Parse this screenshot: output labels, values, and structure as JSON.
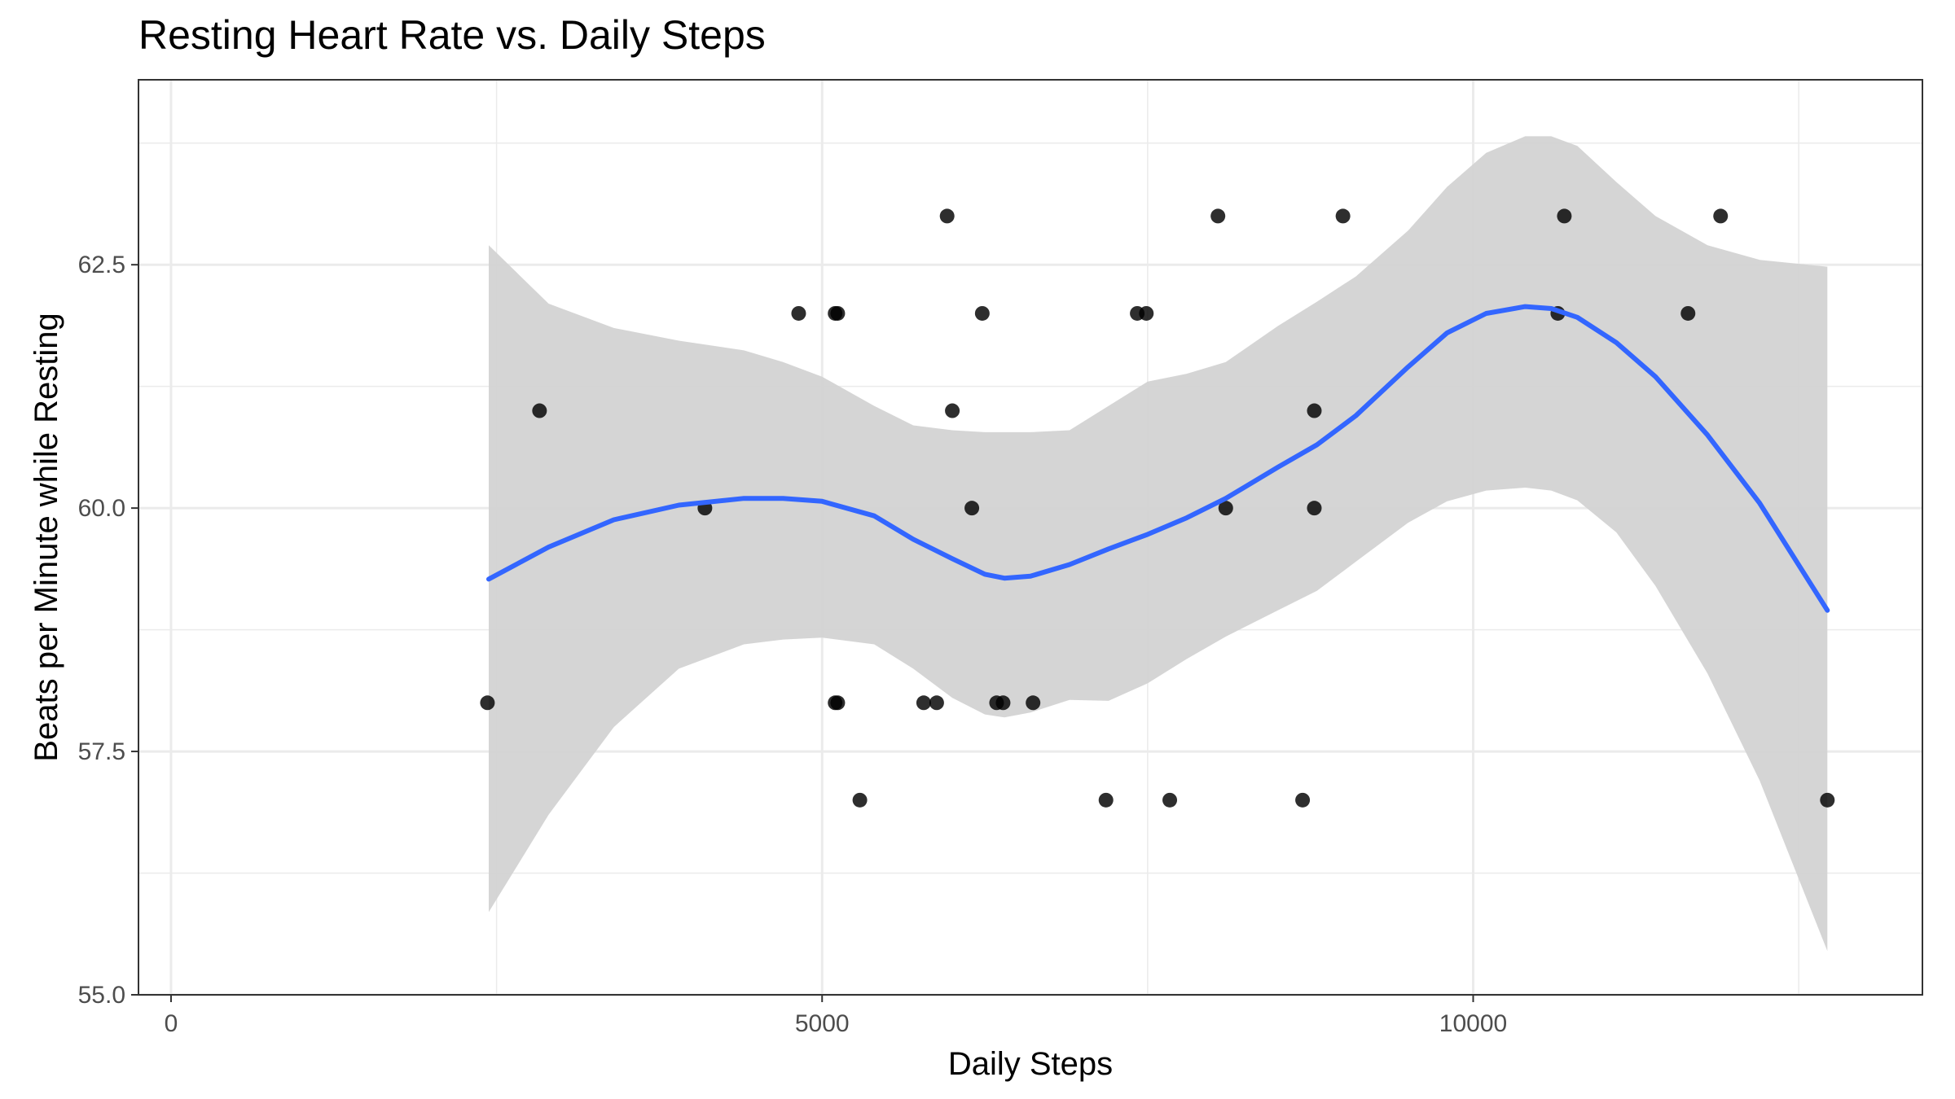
{
  "chart_data": {
    "type": "scatter",
    "title": "Resting Heart Rate vs. Daily Steps",
    "xlabel": "Daily Steps",
    "ylabel": "Beats per Minute while Resting",
    "xlim": [
      -250,
      13450
    ],
    "ylim": [
      55.0,
      64.4
    ],
    "x_ticks": [
      0,
      5000,
      10000
    ],
    "x_tick_labels": [
      "0",
      "5000",
      "10000"
    ],
    "y_ticks": [
      55.0,
      57.5,
      60.0,
      62.5
    ],
    "y_tick_labels": [
      "55.0",
      "57.5",
      "60.0",
      "62.5"
    ],
    "grid": true,
    "legend": "none",
    "colors": {
      "points": "#000000",
      "smooth": "#3366FF",
      "ribbon": "#D3D3D3",
      "grid": "#EBEBEB",
      "panel_border": "#333333"
    },
    "points": [
      {
        "x": 2430,
        "y": 58
      },
      {
        "x": 2830,
        "y": 61
      },
      {
        "x": 4100,
        "y": 60
      },
      {
        "x": 4820,
        "y": 62
      },
      {
        "x": 5100,
        "y": 62
      },
      {
        "x": 5120,
        "y": 62
      },
      {
        "x": 5100,
        "y": 58
      },
      {
        "x": 5120,
        "y": 58
      },
      {
        "x": 5290,
        "y": 57
      },
      {
        "x": 5780,
        "y": 58
      },
      {
        "x": 5880,
        "y": 58
      },
      {
        "x": 5960,
        "y": 63
      },
      {
        "x": 6000,
        "y": 61
      },
      {
        "x": 6150,
        "y": 60
      },
      {
        "x": 6230,
        "y": 62
      },
      {
        "x": 6340,
        "y": 58
      },
      {
        "x": 6390,
        "y": 58
      },
      {
        "x": 6620,
        "y": 58
      },
      {
        "x": 7180,
        "y": 57
      },
      {
        "x": 7420,
        "y": 62
      },
      {
        "x": 7490,
        "y": 62
      },
      {
        "x": 7670,
        "y": 57
      },
      {
        "x": 8040,
        "y": 63
      },
      {
        "x": 8100,
        "y": 60
      },
      {
        "x": 8690,
        "y": 57
      },
      {
        "x": 8780,
        "y": 61
      },
      {
        "x": 8780,
        "y": 60
      },
      {
        "x": 9000,
        "y": 63
      },
      {
        "x": 10650,
        "y": 62
      },
      {
        "x": 10700,
        "y": 63
      },
      {
        "x": 11650,
        "y": 62
      },
      {
        "x": 11900,
        "y": 63
      },
      {
        "x": 12720,
        "y": 57
      }
    ],
    "smooth": {
      "method": "loess",
      "x": [
        2440,
        2900,
        3400,
        3900,
        4400,
        4700,
        5000,
        5400,
        5700,
        6000,
        6250,
        6400,
        6600,
        6900,
        7200,
        7500,
        7800,
        8100,
        8500,
        8800,
        9100,
        9500,
        9800,
        10100,
        10400,
        10600,
        10800,
        11100,
        11400,
        11800,
        12200,
        12720
      ],
      "y": [
        59.27,
        59.6,
        59.88,
        60.03,
        60.1,
        60.1,
        60.07,
        59.92,
        59.68,
        59.48,
        59.32,
        59.28,
        59.3,
        59.42,
        59.58,
        59.73,
        59.9,
        60.1,
        60.42,
        60.65,
        60.95,
        61.45,
        61.8,
        62.0,
        62.07,
        62.05,
        61.96,
        61.7,
        61.35,
        60.75,
        60.05,
        58.95
      ],
      "ymin": [
        55.85,
        56.85,
        57.75,
        58.35,
        58.6,
        58.65,
        58.67,
        58.6,
        58.35,
        58.05,
        57.88,
        57.85,
        57.9,
        58.03,
        58.02,
        58.2,
        58.45,
        58.68,
        58.95,
        59.15,
        59.45,
        59.85,
        60.07,
        60.18,
        60.21,
        60.18,
        60.08,
        59.75,
        59.2,
        58.3,
        57.2,
        55.45
      ],
      "ymax": [
        62.7,
        62.1,
        61.85,
        61.72,
        61.62,
        61.5,
        61.35,
        61.05,
        60.85,
        60.8,
        60.78,
        60.78,
        60.78,
        60.8,
        61.05,
        61.3,
        61.38,
        61.5,
        61.87,
        62.12,
        62.38,
        62.85,
        63.3,
        63.65,
        63.82,
        63.82,
        63.72,
        63.35,
        63.0,
        62.7,
        62.55,
        62.48
      ]
    }
  }
}
